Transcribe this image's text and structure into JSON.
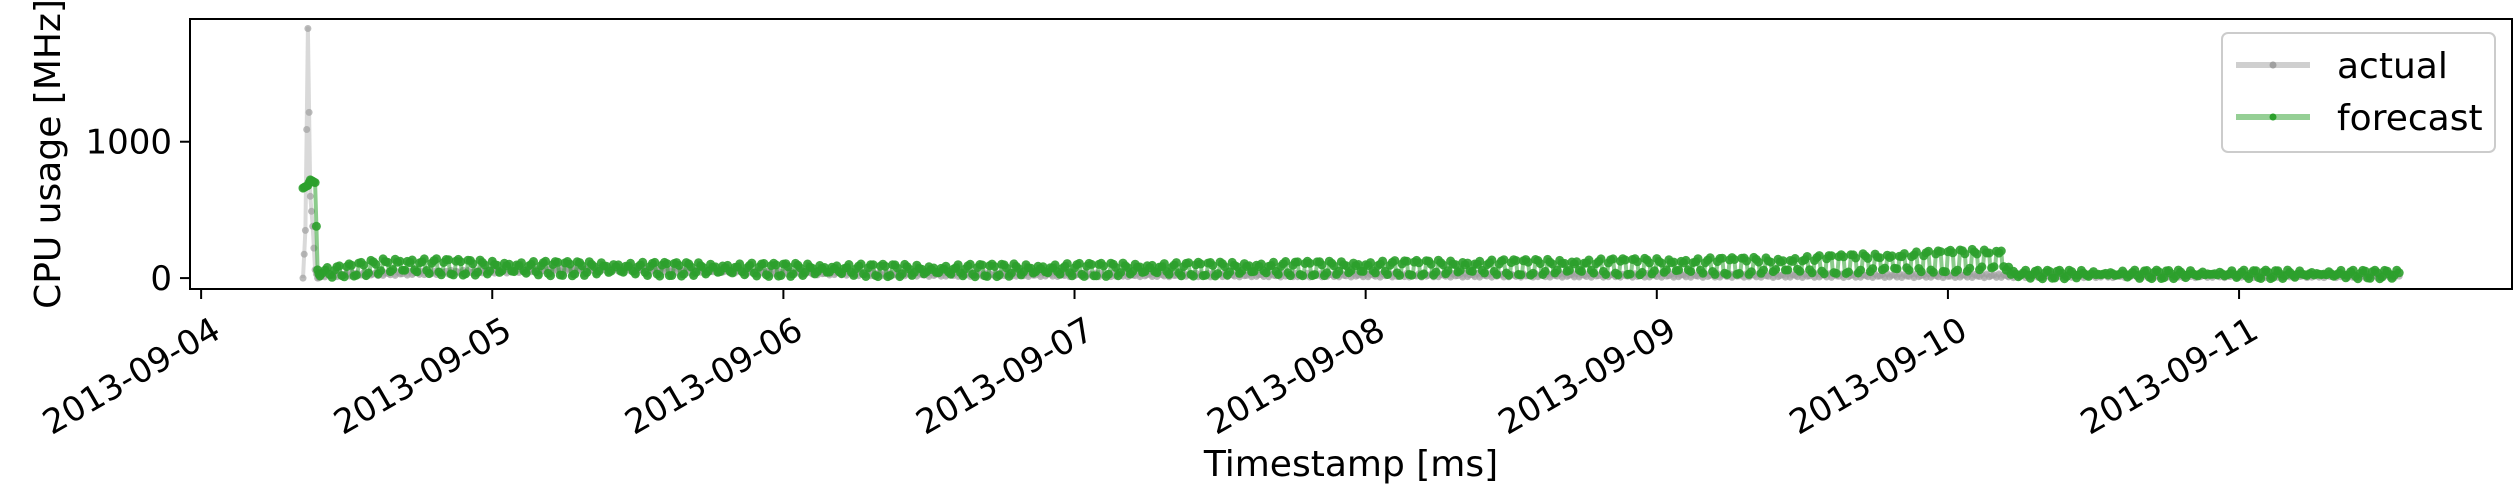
{
  "chart_data": {
    "type": "line",
    "title": "",
    "xlabel": "Timestamp [ms]",
    "ylabel": "CPU usage [MHz]",
    "xlim": [
      "2013-09-03T23:05",
      "2013-09-11T22:30"
    ],
    "ylim": [
      -80,
      1900
    ],
    "x_ticks": [
      "2013-09-04",
      "2013-09-05",
      "2013-09-06",
      "2013-09-07",
      "2013-09-08",
      "2013-09-09",
      "2013-09-10",
      "2013-09-11"
    ],
    "y_ticks": [
      0,
      1000
    ],
    "grid": false,
    "legend": "top-right",
    "start": "2013-09-04T08:24",
    "end": "2013-09-11T13:12",
    "step_minutes": 6,
    "series": [
      {
        "name": "actual",
        "color": "#a0a0a0",
        "points": [
          [
            "2013-09-04T08:24",
            0
          ],
          [
            "2013-09-04T08:36",
            350
          ],
          [
            "2013-09-04T08:48",
            1830
          ],
          [
            "2013-09-04T09:00",
            600
          ],
          [
            "2013-09-04T09:12",
            380
          ],
          [
            "2013-09-04T09:24",
            60
          ],
          [
            "2013-09-04T09:36",
            0
          ],
          [
            "2013-09-04T10:00",
            20
          ],
          [
            "2013-09-05T09:12",
            110
          ],
          [
            "2013-09-06T09:00",
            30
          ],
          [
            "2013-09-07T18:00",
            20
          ],
          [
            "2013-09-10T04:48",
            10
          ],
          [
            "2013-09-11T13:12",
            10
          ]
        ]
      },
      {
        "name": "forecast",
        "color": "#2ca02c",
        "points": [
          [
            "2013-09-04T08:24",
            660
          ],
          [
            "2013-09-04T08:48",
            680
          ],
          [
            "2013-09-04T09:00",
            720
          ],
          [
            "2013-09-04T09:24",
            700
          ],
          [
            "2013-09-04T09:36",
            60
          ],
          [
            "2013-09-04T10:00",
            40
          ],
          [
            "2013-09-04T15:36",
            100
          ],
          [
            "2013-09-05T01:00",
            80
          ],
          [
            "2013-09-06T12:00",
            60
          ],
          [
            "2013-09-07T06:00",
            70
          ],
          [
            "2013-09-09T10:00",
            100
          ],
          [
            "2013-09-10T04:36",
            150
          ],
          [
            "2013-09-10T05:12",
            30
          ],
          [
            "2013-09-11T13:12",
            30
          ]
        ]
      }
    ]
  }
}
